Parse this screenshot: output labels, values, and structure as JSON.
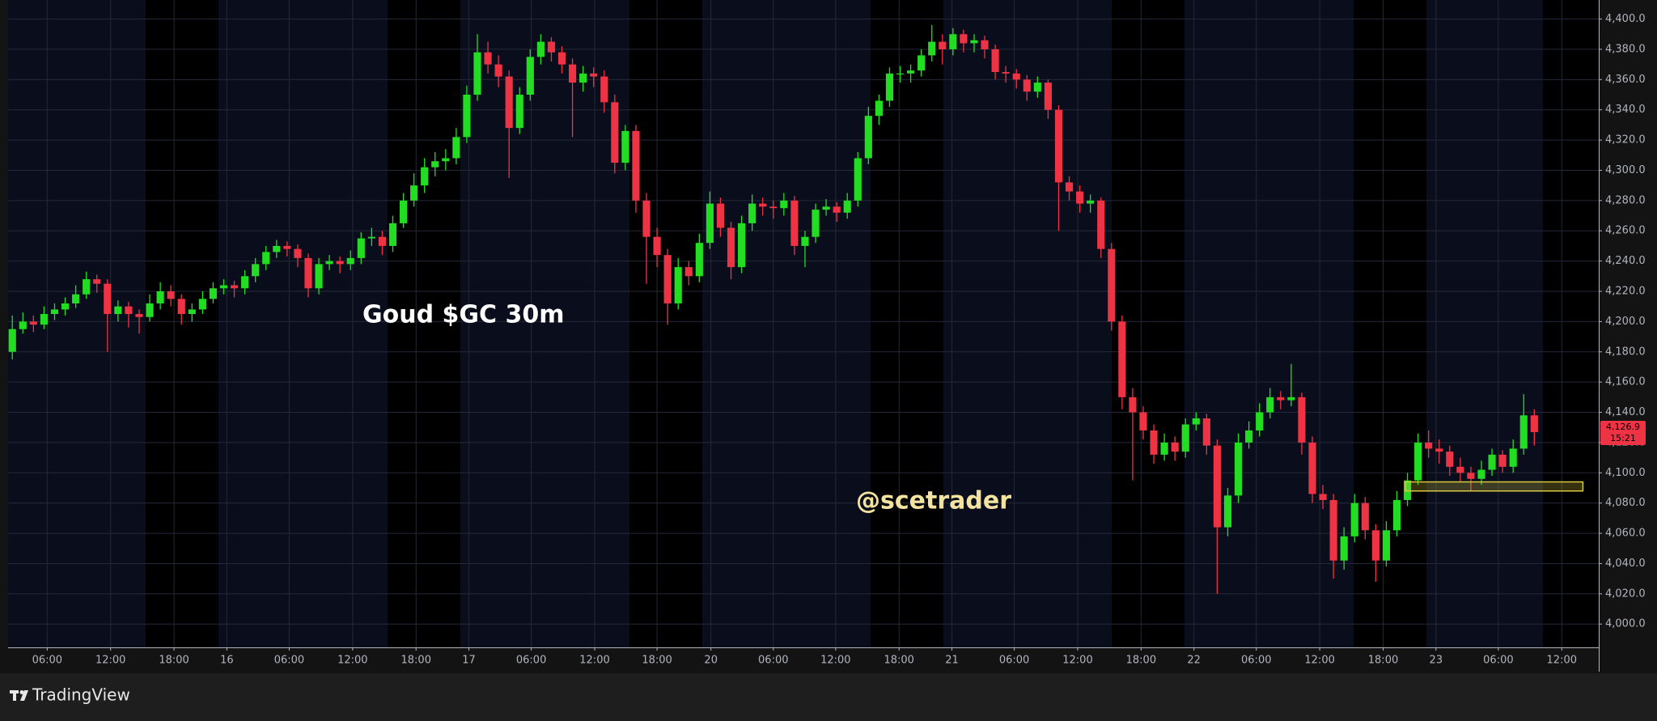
{
  "chart_data": {
    "type": "candlestick",
    "title": "Goud $GC 30m",
    "watermark": "@scetrader",
    "brand": "TradingView",
    "last_price_label": "4,126.9",
    "countdown": "15:21",
    "up_color": "#22dd22",
    "down_color": "#ee3344",
    "grid": true,
    "ylim": [
      3984.6,
      4412.6
    ],
    "yticks": [
      {
        "value": 4000,
        "label": "4,000.0"
      },
      {
        "value": 4020,
        "label": "4,020.0"
      },
      {
        "value": 4040,
        "label": "4,040.0"
      },
      {
        "value": 4060,
        "label": "4,060.0"
      },
      {
        "value": 4080,
        "label": "4,080.0"
      },
      {
        "value": 4100,
        "label": "4,100.0"
      },
      {
        "value": 4120,
        "label": "4,120.0"
      },
      {
        "value": 4140,
        "label": "4,140.0"
      },
      {
        "value": 4160,
        "label": "4,160.0"
      },
      {
        "value": 4180,
        "label": "4,180.0"
      },
      {
        "value": 4200,
        "label": "4,200.0"
      },
      {
        "value": 4220,
        "label": "4,220.0"
      },
      {
        "value": 4240,
        "label": "4,240.0"
      },
      {
        "value": 4260,
        "label": "4,260.0"
      },
      {
        "value": 4280,
        "label": "4,280.0"
      },
      {
        "value": 4300,
        "label": "4,300.0"
      },
      {
        "value": 4320,
        "label": "4,320.0"
      },
      {
        "value": 4340,
        "label": "4,340.0"
      },
      {
        "value": 4360,
        "label": "4,360.0"
      },
      {
        "value": 4380,
        "label": "4,380.0"
      },
      {
        "value": 4400,
        "label": "4,400.0"
      }
    ],
    "xlim": [
      -0.4,
      150.1
    ],
    "xticks": [
      {
        "value": 3.3,
        "label": "06:00"
      },
      {
        "value": 9.3,
        "label": "12:00"
      },
      {
        "value": 15.3,
        "label": "18:00"
      },
      {
        "value": 20.3,
        "label": "16"
      },
      {
        "value": 26.2,
        "label": "06:00"
      },
      {
        "value": 32.2,
        "label": "12:00"
      },
      {
        "value": 38.2,
        "label": "18:00"
      },
      {
        "value": 43.2,
        "label": "17"
      },
      {
        "value": 49.1,
        "label": "06:00"
      },
      {
        "value": 55.1,
        "label": "12:00"
      },
      {
        "value": 61,
        "label": "18:00"
      },
      {
        "value": 66.1,
        "label": "20"
      },
      {
        "value": 72,
        "label": "06:00"
      },
      {
        "value": 77.9,
        "label": "12:00"
      },
      {
        "value": 83.9,
        "label": "18:00"
      },
      {
        "value": 88.9,
        "label": "21"
      },
      {
        "value": 94.8,
        "label": "06:00"
      },
      {
        "value": 100.8,
        "label": "12:00"
      },
      {
        "value": 106.8,
        "label": "18:00"
      },
      {
        "value": 111.8,
        "label": "22"
      },
      {
        "value": 117.7,
        "label": "06:00"
      },
      {
        "value": 123.7,
        "label": "12:00"
      },
      {
        "value": 129.7,
        "label": "18:00"
      },
      {
        "value": 134.7,
        "label": "23"
      },
      {
        "value": 140.6,
        "label": "06:00"
      },
      {
        "value": 146.6,
        "label": "12:00"
      }
    ],
    "zone": {
      "low": 4088,
      "high": 4094,
      "start": 131.8,
      "end": 148.6,
      "color": "#d8c840"
    },
    "ohlc": [
      [
        4180,
        4204,
        4175,
        4195
      ],
      [
        4195,
        4206,
        4192,
        4200
      ],
      [
        4200,
        4204,
        4193,
        4198
      ],
      [
        4198,
        4210,
        4195,
        4205
      ],
      [
        4205,
        4212,
        4201,
        4208
      ],
      [
        4208,
        4216,
        4204,
        4212
      ],
      [
        4212,
        4224,
        4209,
        4218
      ],
      [
        4218,
        4233,
        4215,
        4228
      ],
      [
        4228,
        4231,
        4219,
        4225
      ],
      [
        4225,
        4228,
        4180,
        4205
      ],
      [
        4205,
        4214,
        4200,
        4210
      ],
      [
        4210,
        4213,
        4196,
        4205
      ],
      [
        4205,
        4208,
        4192,
        4203
      ],
      [
        4203,
        4218,
        4200,
        4212
      ],
      [
        4212,
        4226,
        4208,
        4220
      ],
      [
        4220,
        4224,
        4210,
        4215
      ],
      [
        4215,
        4218,
        4198,
        4205
      ],
      [
        4205,
        4212,
        4200,
        4208
      ],
      [
        4208,
        4220,
        4205,
        4215
      ],
      [
        4215,
        4226,
        4212,
        4222
      ],
      [
        4222,
        4228,
        4218,
        4224
      ],
      [
        4224,
        4227,
        4216,
        4222
      ],
      [
        4222,
        4234,
        4218,
        4230
      ],
      [
        4230,
        4242,
        4226,
        4238
      ],
      [
        4238,
        4250,
        4234,
        4246
      ],
      [
        4246,
        4254,
        4242,
        4250
      ],
      [
        4250,
        4253,
        4243,
        4248
      ],
      [
        4248,
        4251,
        4236,
        4242
      ],
      [
        4242,
        4245,
        4216,
        4222
      ],
      [
        4222,
        4242,
        4218,
        4238
      ],
      [
        4238,
        4244,
        4234,
        4240
      ],
      [
        4240,
        4243,
        4232,
        4238
      ],
      [
        4238,
        4247,
        4234,
        4242
      ],
      [
        4242,
        4259,
        4238,
        4255
      ],
      [
        4255,
        4262,
        4250,
        4256
      ],
      [
        4256,
        4260,
        4244,
        4250
      ],
      [
        4250,
        4270,
        4246,
        4265
      ],
      [
        4265,
        4285,
        4262,
        4280
      ],
      [
        4280,
        4298,
        4276,
        4290
      ],
      [
        4290,
        4308,
        4285,
        4302
      ],
      [
        4302,
        4312,
        4296,
        4306
      ],
      [
        4306,
        4314,
        4300,
        4308
      ],
      [
        4308,
        4328,
        4304,
        4322
      ],
      [
        4322,
        4356,
        4318,
        4350
      ],
      [
        4350,
        4390,
        4346,
        4378
      ],
      [
        4378,
        4385,
        4364,
        4370
      ],
      [
        4370,
        4376,
        4355,
        4362
      ],
      [
        4362,
        4366,
        4295,
        4328
      ],
      [
        4328,
        4355,
        4324,
        4350
      ],
      [
        4350,
        4380,
        4346,
        4375
      ],
      [
        4375,
        4390,
        4370,
        4385
      ],
      [
        4385,
        4388,
        4372,
        4378
      ],
      [
        4378,
        4382,
        4364,
        4370
      ],
      [
        4370,
        4374,
        4322,
        4358
      ],
      [
        4358,
        4369,
        4352,
        4364
      ],
      [
        4364,
        4368,
        4355,
        4362
      ],
      [
        4362,
        4366,
        4338,
        4345
      ],
      [
        4345,
        4350,
        4298,
        4305
      ],
      [
        4305,
        4330,
        4300,
        4326
      ],
      [
        4326,
        4330,
        4272,
        4280
      ],
      [
        4280,
        4285,
        4225,
        4256
      ],
      [
        4256,
        4262,
        4236,
        4244
      ],
      [
        4244,
        4248,
        4198,
        4212
      ],
      [
        4212,
        4242,
        4208,
        4236
      ],
      [
        4236,
        4240,
        4224,
        4230
      ],
      [
        4230,
        4258,
        4226,
        4252
      ],
      [
        4252,
        4286,
        4248,
        4278
      ],
      [
        4278,
        4282,
        4256,
        4262
      ],
      [
        4262,
        4266,
        4228,
        4236
      ],
      [
        4236,
        4270,
        4232,
        4265
      ],
      [
        4265,
        4284,
        4260,
        4278
      ],
      [
        4278,
        4282,
        4270,
        4276
      ],
      [
        4276,
        4280,
        4268,
        4275
      ],
      [
        4275,
        4285,
        4270,
        4280
      ],
      [
        4280,
        4283,
        4244,
        4250
      ],
      [
        4250,
        4260,
        4236,
        4256
      ],
      [
        4256,
        4278,
        4252,
        4274
      ],
      [
        4274,
        4281,
        4270,
        4276
      ],
      [
        4276,
        4279,
        4266,
        4272
      ],
      [
        4272,
        4285,
        4268,
        4280
      ],
      [
        4280,
        4312,
        4276,
        4308
      ],
      [
        4308,
        4342,
        4304,
        4336
      ],
      [
        4336,
        4350,
        4330,
        4346
      ],
      [
        4346,
        4368,
        4342,
        4364
      ],
      [
        4364,
        4369,
        4358,
        4364
      ],
      [
        4364,
        4370,
        4358,
        4366
      ],
      [
        4366,
        4380,
        4362,
        4376
      ],
      [
        4376,
        4396,
        4372,
        4385
      ],
      [
        4385,
        4390,
        4370,
        4380
      ],
      [
        4380,
        4394,
        4376,
        4390
      ],
      [
        4390,
        4393,
        4378,
        4384
      ],
      [
        4384,
        4390,
        4378,
        4386
      ],
      [
        4386,
        4389,
        4374,
        4380
      ],
      [
        4380,
        4383,
        4360,
        4365
      ],
      [
        4365,
        4369,
        4358,
        4364
      ],
      [
        4364,
        4367,
        4354,
        4360
      ],
      [
        4360,
        4363,
        4346,
        4352
      ],
      [
        4352,
        4362,
        4348,
        4358
      ],
      [
        4358,
        4360,
        4334,
        4340
      ],
      [
        4340,
        4343,
        4260,
        4292
      ],
      [
        4292,
        4296,
        4280,
        4286
      ],
      [
        4286,
        4290,
        4272,
        4278
      ],
      [
        4278,
        4284,
        4272,
        4280
      ],
      [
        4280,
        4282,
        4242,
        4248
      ],
      [
        4248,
        4252,
        4194,
        4200
      ],
      [
        4200,
        4204,
        4142,
        4150
      ],
      [
        4150,
        4156,
        4095,
        4140
      ],
      [
        4140,
        4144,
        4122,
        4128
      ],
      [
        4128,
        4132,
        4106,
        4112
      ],
      [
        4112,
        4126,
        4108,
        4120
      ],
      [
        4120,
        4124,
        4108,
        4114
      ],
      [
        4114,
        4136,
        4110,
        4132
      ],
      [
        4132,
        4140,
        4128,
        4136
      ],
      [
        4136,
        4139,
        4112,
        4118
      ],
      [
        4118,
        4122,
        4020,
        4064
      ],
      [
        4064,
        4090,
        4058,
        4085
      ],
      [
        4085,
        4126,
        4080,
        4120
      ],
      [
        4120,
        4134,
        4116,
        4128
      ],
      [
        4128,
        4146,
        4124,
        4140
      ],
      [
        4140,
        4156,
        4136,
        4150
      ],
      [
        4150,
        4154,
        4142,
        4148
      ],
      [
        4148,
        4172,
        4144,
        4150
      ],
      [
        4150,
        4153,
        4112,
        4120
      ],
      [
        4120,
        4124,
        4080,
        4086
      ],
      [
        4086,
        4092,
        4076,
        4082
      ],
      [
        4082,
        4086,
        4030,
        4042
      ],
      [
        4042,
        4064,
        4036,
        4058
      ],
      [
        4058,
        4086,
        4054,
        4080
      ],
      [
        4080,
        4084,
        4056,
        4062
      ],
      [
        4062,
        4066,
        4028,
        4042
      ],
      [
        4042,
        4068,
        4038,
        4062
      ],
      [
        4062,
        4088,
        4058,
        4082
      ],
      [
        4082,
        4100,
        4078,
        4095
      ],
      [
        4095,
        4126,
        4092,
        4120
      ],
      [
        4120,
        4128,
        4110,
        4116
      ],
      [
        4116,
        4122,
        4106,
        4114
      ],
      [
        4114,
        4118,
        4098,
        4104
      ],
      [
        4104,
        4110,
        4094,
        4100
      ],
      [
        4100,
        4104,
        4088,
        4096
      ],
      [
        4096,
        4108,
        4092,
        4102
      ],
      [
        4102,
        4116,
        4098,
        4112
      ],
      [
        4112,
        4115,
        4100,
        4104
      ],
      [
        4104,
        4122,
        4100,
        4116
      ],
      [
        4116,
        4152,
        4112,
        4138
      ],
      [
        4138,
        4142,
        4118,
        4126.9
      ]
    ]
  }
}
